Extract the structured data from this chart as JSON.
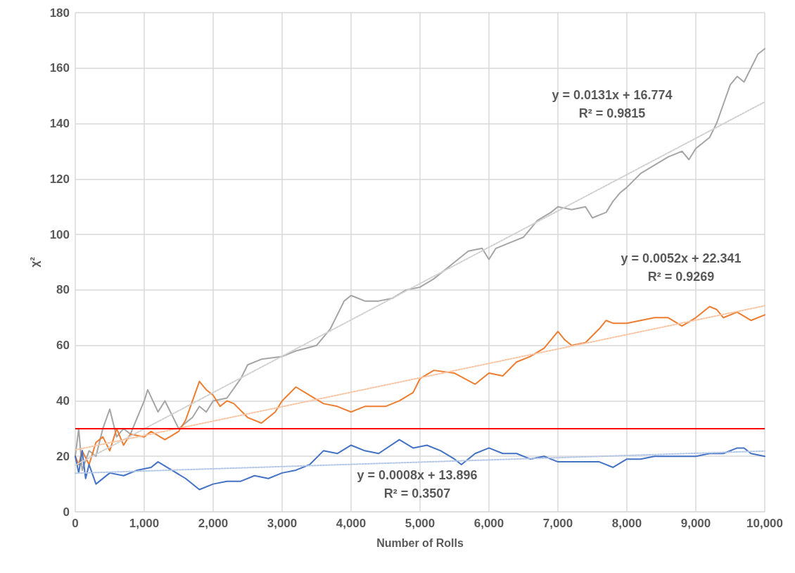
{
  "chart_data": {
    "type": "line",
    "xlabel": "Number of Rolls",
    "ylabel": "χ²",
    "xlim": [
      0,
      10000
    ],
    "ylim": [
      0,
      180
    ],
    "xticks": [
      0,
      {
        "value": 1000,
        "label": "1,000"
      },
      {
        "value": 2000,
        "label": "2,000"
      },
      {
        "value": 3000,
        "label": "3,000"
      },
      {
        "value": 4000,
        "label": "4,000"
      },
      {
        "value": 5000,
        "label": "5,000"
      },
      {
        "value": 6000,
        "label": "6,000"
      },
      {
        "value": 7000,
        "label": "7,000"
      },
      {
        "value": 8000,
        "label": "8,000"
      },
      {
        "value": 9000,
        "label": "9,000"
      },
      {
        "value": 10000,
        "label": "10,000"
      }
    ],
    "yticks": [
      0,
      20,
      40,
      60,
      80,
      100,
      120,
      140,
      160,
      180
    ],
    "grid": true,
    "marker": "none",
    "series": [
      {
        "color": "#a5a5a5",
        "x": [
          0,
          50,
          100,
          200,
          300,
          400,
          500,
          600,
          700,
          800,
          1000,
          1050,
          1200,
          1300,
          1500,
          1700,
          1800,
          1900,
          2000,
          2200,
          2400,
          2500,
          2700,
          3000,
          3200,
          3500,
          3700,
          3900,
          4000,
          4200,
          4400,
          4600,
          4800,
          5000,
          5200,
          5500,
          5700,
          5900,
          6000,
          6100,
          6300,
          6500,
          6700,
          6900,
          7000,
          7200,
          7400,
          7500,
          7700,
          7800,
          7900,
          8000,
          8200,
          8400,
          8600,
          8800,
          8900,
          9000,
          9200,
          9300,
          9400,
          9500,
          9600,
          9700,
          9800,
          9900,
          10000
        ],
        "values": [
          20,
          30,
          15,
          22,
          20,
          30,
          37,
          27,
          30,
          28,
          40,
          44,
          36,
          40,
          30,
          34,
          38,
          36,
          40,
          41,
          48,
          53,
          55,
          56,
          58,
          60,
          66,
          76,
          78,
          76,
          76,
          77,
          80,
          81,
          84,
          90,
          94,
          95,
          91,
          95,
          97,
          99,
          105,
          108,
          110,
          109,
          110,
          106,
          108,
          112,
          115,
          117,
          122,
          125,
          128,
          130,
          127,
          131,
          135,
          140,
          147,
          154,
          157,
          155,
          160,
          165,
          167
        ]
      },
      {
        "color": "#ed7d31",
        "x": [
          0,
          50,
          100,
          200,
          300,
          400,
          500,
          600,
          700,
          800,
          1000,
          1100,
          1300,
          1500,
          1600,
          1700,
          1800,
          1900,
          2000,
          2100,
          2200,
          2300,
          2500,
          2700,
          2900,
          3000,
          3200,
          3400,
          3600,
          3800,
          4000,
          4200,
          4500,
          4700,
          4900,
          5000,
          5200,
          5500,
          5800,
          6000,
          6200,
          6400,
          6600,
          6800,
          7000,
          7100,
          7200,
          7400,
          7600,
          7700,
          7800,
          8000,
          8200,
          8400,
          8600,
          8800,
          9000,
          9200,
          9300,
          9400,
          9600,
          9800,
          10000
        ],
        "values": [
          20,
          17,
          22,
          17,
          25,
          27,
          22,
          30,
          24,
          28,
          27,
          29,
          26,
          29,
          33,
          40,
          47,
          44,
          42,
          38,
          40,
          39,
          34,
          32,
          36,
          40,
          45,
          42,
          39,
          38,
          36,
          38,
          38,
          40,
          43,
          48,
          51,
          50,
          46,
          50,
          49,
          54,
          56,
          59,
          65,
          62,
          60,
          61,
          66,
          69,
          68,
          68,
          69,
          70,
          70,
          67,
          70,
          74,
          73,
          70,
          72,
          69,
          71
        ]
      },
      {
        "color": "#4472c4",
        "x": [
          0,
          50,
          100,
          150,
          200,
          300,
          500,
          700,
          900,
          1100,
          1200,
          1400,
          1600,
          1800,
          2000,
          2200,
          2400,
          2600,
          2800,
          3000,
          3200,
          3400,
          3600,
          3800,
          4000,
          4200,
          4400,
          4700,
          4900,
          5100,
          5300,
          5500,
          5600,
          5800,
          6000,
          6200,
          6400,
          6600,
          6800,
          7000,
          7200,
          7400,
          7600,
          7800,
          8000,
          8200,
          8400,
          8600,
          8800,
          9000,
          9200,
          9400,
          9600,
          9700,
          9800,
          10000
        ],
        "values": [
          20,
          14,
          22,
          12,
          17,
          10,
          14,
          13,
          15,
          16,
          18,
          15,
          12,
          8,
          10,
          11,
          11,
          13,
          12,
          14,
          15,
          17,
          22,
          21,
          24,
          22,
          21,
          26,
          23,
          24,
          22,
          19,
          17,
          21,
          23,
          21,
          21,
          19,
          20,
          18,
          18,
          18,
          18,
          16,
          19,
          19,
          20,
          20,
          20,
          20,
          21,
          21,
          23,
          23,
          21,
          20
        ]
      },
      {
        "color": "#d0d0d0",
        "line_style": "dotted",
        "x": [
          0,
          10000
        ],
        "values": [
          16.8,
          147.8
        ]
      },
      {
        "color": "#f8c5a4",
        "line_style": "dotted",
        "x": [
          0,
          10000
        ],
        "values": [
          22.3,
          74.3
        ]
      },
      {
        "color": "#b4c7e7",
        "line_style": "dotted",
        "x": [
          0,
          10000
        ],
        "values": [
          13.9,
          21.9
        ]
      }
    ],
    "ref_lines": [
      {
        "axis": "y",
        "value": 30,
        "color": "#ff0000"
      }
    ],
    "annotations": [
      "y = 0.0131x + 16.774\nR² = 0.9815",
      "y = 0.0052x + 22.341\nR² = 0.9269",
      "y = 0.0008x + 13.896\nR² = 0.3507"
    ]
  }
}
